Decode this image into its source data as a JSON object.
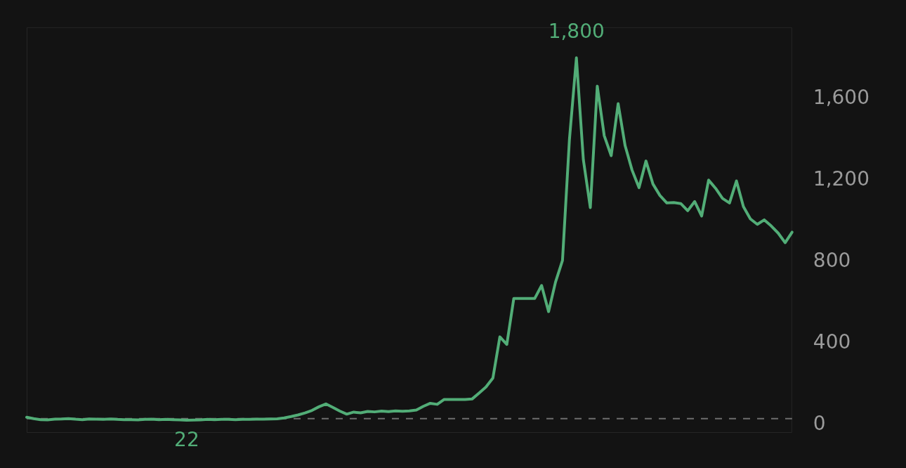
{
  "chart_data": {
    "type": "line",
    "categories": [
      null,
      null,
      null,
      null,
      null,
      null,
      null,
      null,
      null,
      null,
      null,
      null,
      null,
      null,
      null,
      null,
      null,
      null,
      null,
      null,
      null,
      null,
      null,
      null,
      null,
      null,
      null,
      null,
      null,
      null,
      null,
      null,
      null,
      null,
      null,
      null,
      null,
      null,
      null,
      null,
      null,
      null,
      null,
      null,
      null,
      null,
      null,
      null,
      null,
      null,
      null,
      null,
      null,
      null,
      null,
      null,
      null,
      null,
      null,
      null,
      null,
      null,
      null,
      null,
      null,
      null,
      null,
      null,
      null,
      null,
      null,
      null,
      null,
      null,
      null,
      null,
      null,
      null,
      null,
      null,
      null,
      null,
      null,
      null,
      null,
      null,
      null,
      null,
      null,
      null,
      null,
      null,
      null,
      null,
      null,
      null,
      null,
      null,
      null,
      null,
      null,
      null,
      null,
      null,
      null,
      null,
      null,
      null,
      null,
      null,
      null
    ],
    "series": [
      {
        "color": "#52ad77",
        "values": [
          37,
          30,
          25,
          24,
          27,
          28,
          30,
          27,
          25,
          28,
          27,
          26,
          28,
          26,
          25,
          25,
          24,
          26,
          27,
          25,
          26,
          25,
          24,
          22,
          23,
          24,
          26,
          25,
          26,
          26,
          25,
          26,
          26,
          27,
          27,
          28,
          29,
          33,
          40,
          48,
          58,
          70,
          88,
          102,
          85,
          67,
          52,
          62,
          58,
          65,
          63,
          67,
          64,
          68,
          66,
          68,
          72,
          90,
          105,
          100,
          124,
          124,
          124,
          124,
          126,
          155,
          185,
          229,
          431,
          394,
          619,
          619,
          619,
          619,
          683,
          555,
          700,
          806,
          1400,
          1800,
          1300,
          1065,
          1661,
          1418,
          1320,
          1575,
          1369,
          1249,
          1163,
          1294,
          1181,
          1125,
          1088,
          1090,
          1085,
          1050,
          1095,
          1024,
          1200,
          1160,
          1110,
          1088,
          1196,
          1070,
          1010,
          983,
          1005,
          975,
          940,
          893,
          945
        ],
        "value_labels": [
          null,
          null,
          null,
          null,
          null,
          null,
          null,
          null,
          null,
          null,
          null,
          null,
          null,
          null,
          null,
          null,
          null,
          null,
          null,
          null,
          null,
          null,
          null,
          "22",
          null,
          null,
          null,
          null,
          null,
          null,
          null,
          null,
          null,
          null,
          null,
          null,
          null,
          null,
          null,
          null,
          null,
          null,
          null,
          null,
          null,
          null,
          null,
          null,
          null,
          null,
          null,
          null,
          null,
          null,
          null,
          null,
          null,
          null,
          null,
          null,
          null,
          null,
          null,
          null,
          null,
          null,
          null,
          null,
          null,
          null,
          null,
          null,
          null,
          null,
          null,
          null,
          null,
          null,
          null,
          "1,800",
          null,
          null,
          null,
          null,
          null,
          null,
          null,
          null,
          null,
          null,
          null,
          null,
          null,
          null,
          null,
          null,
          null,
          null,
          null,
          null,
          null,
          null,
          null,
          null,
          null,
          null,
          null,
          null,
          null,
          null,
          null
        ]
      }
    ],
    "ylim": [
      -40,
      1950
    ],
    "yticks": [
      {
        "value": 0,
        "label": "0"
      },
      {
        "value": 400,
        "label": "400"
      },
      {
        "value": 800,
        "label": "800"
      },
      {
        "value": 1200,
        "label": "1,200"
      },
      {
        "value": 1600,
        "label": "1,600"
      }
    ],
    "tick_labels": "y",
    "grid": false,
    "legend": false,
    "marker": "none",
    "line_style": "solid",
    "ref_lines": [
      {
        "axis": "y",
        "value": 30,
        "color": "#6e6e6e",
        "line_style": "dashed"
      }
    ]
  }
}
